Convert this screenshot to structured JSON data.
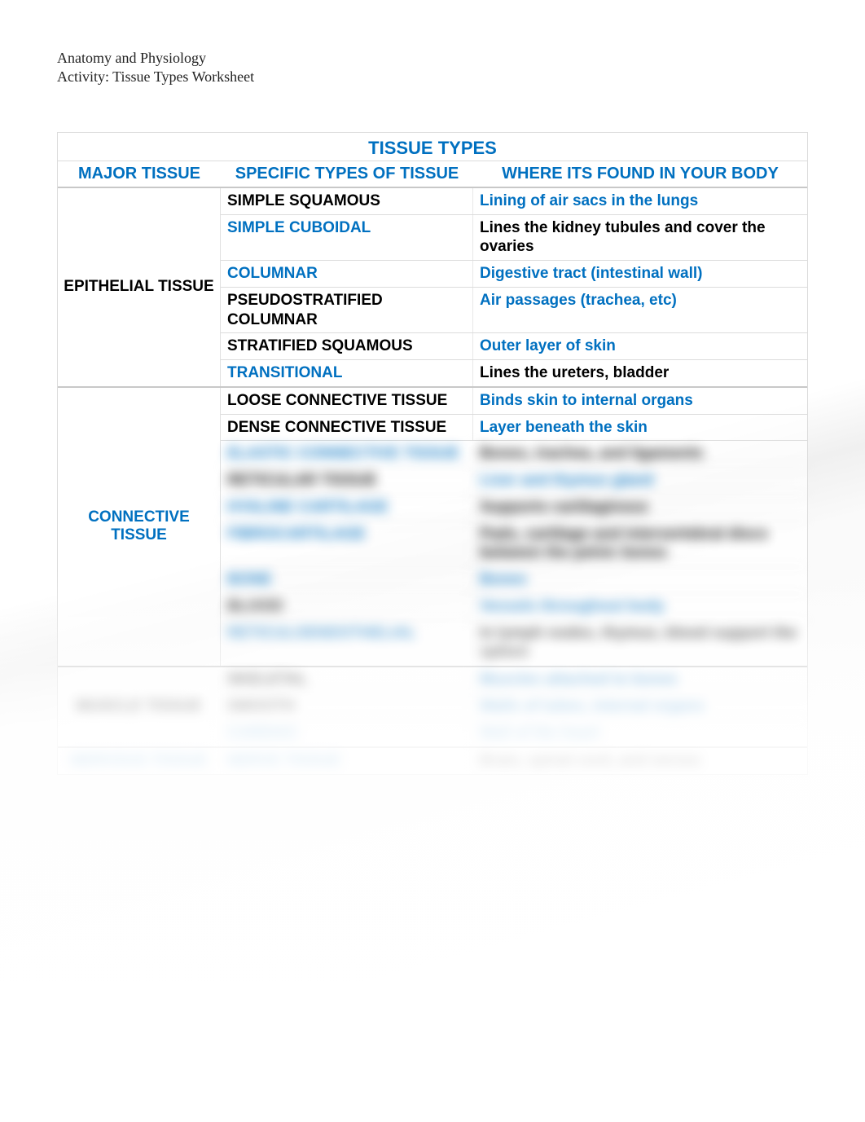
{
  "colors": {
    "blue": "#0070c0",
    "black": "#000000",
    "border": "#dcdcdc",
    "section_border": "#c8c8c8"
  },
  "header": {
    "line1": "Anatomy and Physiology",
    "line2": "Activity: Tissue Types Worksheet"
  },
  "table": {
    "title": "TISSUE TYPES",
    "columns": {
      "major": "MAJOR TISSUE",
      "specific": "SPECIFIC TYPES OF TISSUE",
      "location": "WHERE ITS FOUND IN YOUR BODY"
    },
    "sections": [
      {
        "major": "EPITHELIAL TISSUE",
        "major_color": "#000000",
        "rows": [
          {
            "spec": "SIMPLE SQUAMOUS",
            "spec_color": "#000000",
            "loc": "Lining of air sacs in the lungs",
            "loc_color": "#0070c0",
            "blur": false
          },
          {
            "spec": "SIMPLE CUBOIDAL",
            "spec_color": "#0070c0",
            "loc": "Lines the kidney tubules and cover the ovaries",
            "loc_color": "#000000",
            "blur": false
          },
          {
            "spec": "COLUMNAR",
            "spec_color": "#0070c0",
            "loc": "Digestive tract (intestinal wall)",
            "loc_color": "#0070c0",
            "blur": false
          },
          {
            "spec": "PSEUDOSTRATIFIED COLUMNAR",
            "spec_color": "#000000",
            "loc": "Air passages (trachea, etc)",
            "loc_color": "#0070c0",
            "blur": false
          },
          {
            "spec": "STRATIFIED SQUAMOUS",
            "spec_color": "#000000",
            "loc": "Outer layer of skin",
            "loc_color": "#0070c0",
            "blur": false
          },
          {
            "spec": "TRANSITIONAL",
            "spec_color": "#0070c0",
            "loc": "Lines the ureters, bladder",
            "loc_color": "#000000",
            "blur": false
          }
        ]
      },
      {
        "major": "CONNECTIVE TISSUE",
        "major_color": "#0070c0",
        "rows": [
          {
            "spec": "LOOSE CONNECTIVE TISSUE",
            "spec_color": "#000000",
            "loc": "Binds skin to internal organs",
            "loc_color": "#0070c0",
            "blur": false
          },
          {
            "spec": "DENSE CONNECTIVE TISSUE",
            "spec_color": "#000000",
            "loc": "Layer beneath the skin",
            "loc_color": "#0070c0",
            "blur": false
          },
          {
            "spec": "ELASTIC CONNECTIVE TISSUE",
            "spec_color": "#0070c0",
            "loc": "Bones, trachea, and ligaments",
            "loc_color": "#000000",
            "blur": true
          },
          {
            "spec": "RETICULAR TISSUE",
            "spec_color": "#000000",
            "loc": "Liver and thymus gland",
            "loc_color": "#0070c0",
            "blur": true
          },
          {
            "spec": "HYALINE CARTILAGE",
            "spec_color": "#0070c0",
            "loc": "Supports cartilaginous",
            "loc_color": "#000000",
            "blur": true
          },
          {
            "spec": "FIBROCARTILAGE",
            "spec_color": "#0070c0",
            "loc": "Pads, cartilage and intervertebral discs between the pelvic bones",
            "loc_color": "#000000",
            "blur": true
          },
          {
            "spec": "BONE",
            "spec_color": "#0070c0",
            "loc": "Bones",
            "loc_color": "#0070c0",
            "blur": true
          },
          {
            "spec": "BLOOD",
            "spec_color": "#000000",
            "loc": "Vessels throughout body",
            "loc_color": "#0070c0",
            "blur": true
          },
          {
            "spec": "RETICULOENDOTHELIAL",
            "spec_color": "#0070c0",
            "loc": "In lymph nodes, thymus, blood support the spleen",
            "loc_color": "#000000",
            "blur": true
          }
        ]
      },
      {
        "major": "MUSCLE TISSUE",
        "major_color": "#000000",
        "blur_major": true,
        "rows": [
          {
            "spec": "SKELETAL",
            "spec_color": "#000000",
            "loc": "Muscles attached to bones",
            "loc_color": "#0070c0",
            "blur": true
          },
          {
            "spec": "SMOOTH",
            "spec_color": "#000000",
            "loc": "Walls of tubes, internal organs",
            "loc_color": "#0070c0",
            "blur": true
          },
          {
            "spec": "CARDIAC",
            "spec_color": "#0070c0",
            "loc": "Wall of the heart",
            "loc_color": "#0070c0",
            "blur": true
          }
        ]
      },
      {
        "major": "NERVOUS TISSUE",
        "major_color": "#0070c0",
        "blur_major": true,
        "rows": [
          {
            "spec": "NERVE TISSUE",
            "spec_color": "#0070c0",
            "loc": "Brain, spinal cord, and nerves",
            "loc_color": "#000000",
            "blur": true
          }
        ]
      }
    ]
  }
}
